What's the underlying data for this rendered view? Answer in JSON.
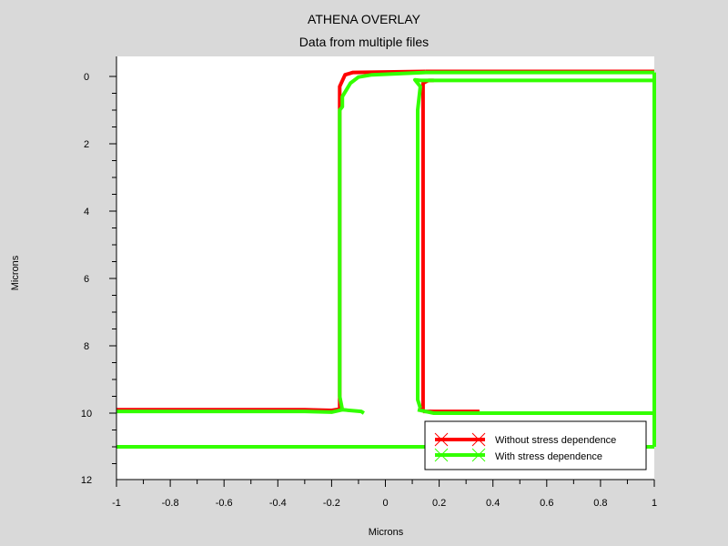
{
  "chart_data": {
    "type": "line",
    "title": "ATHENA OVERLAY",
    "subtitle": "Data from multiple files",
    "xlabel": "Microns",
    "ylabel": "Microns",
    "xlim": [
      -1,
      1
    ],
    "ylim": [
      12,
      -0.5
    ],
    "y_inverted": true,
    "x_ticks": [
      "-1",
      "-0.8",
      "-0.6",
      "-0.4",
      "-0.2",
      "0",
      "0.2",
      "0.4",
      "0.6",
      "0.8",
      "1"
    ],
    "y_ticks": [
      "0",
      "2",
      "4",
      "6",
      "8",
      "10",
      "12"
    ],
    "grid": false,
    "legend_position": "bottom-right",
    "series": [
      {
        "name": "Without stress dependence",
        "color": "#ff0000",
        "paths": [
          [
            [
              -1,
              9.9
            ],
            [
              -0.3,
              9.9
            ],
            [
              -0.2,
              9.92
            ],
            [
              -0.17,
              9.88
            ],
            [
              -0.17,
              0.3
            ],
            [
              -0.15,
              -0.05
            ],
            [
              -0.12,
              -0.12
            ],
            [
              0.15,
              -0.15
            ]
          ],
          [
            [
              0.13,
              9.9
            ],
            [
              0.14,
              9.88
            ],
            [
              0.14,
              0.2
            ],
            [
              0.16,
              0.12
            ],
            [
              0.18,
              0.12
            ]
          ],
          [
            [
              0.14,
              9.95
            ],
            [
              0.35,
              9.95
            ]
          ],
          [
            [
              0.15,
              -0.15
            ],
            [
              1,
              -0.15
            ]
          ],
          [
            [
              0.9,
              11
            ],
            [
              1,
              11
            ]
          ]
        ]
      },
      {
        "name": "With stress dependence",
        "color": "#33ff00",
        "paths": [
          [
            [
              -1,
              9.95
            ],
            [
              -0.3,
              9.95
            ],
            [
              -0.2,
              9.97
            ],
            [
              -0.16,
              9.9
            ],
            [
              -0.09,
              9.95
            ],
            [
              -0.08,
              10.0
            ]
          ],
          [
            [
              -0.16,
              9.9
            ],
            [
              -0.17,
              9.5
            ],
            [
              -0.17,
              1
            ],
            [
              -0.16,
              0.9
            ],
            [
              -0.16,
              0.6
            ],
            [
              -0.13,
              0.2
            ],
            [
              -0.1,
              0.02
            ],
            [
              -0.05,
              -0.05
            ],
            [
              0.15,
              -0.12
            ],
            [
              1,
              -0.12
            ]
          ],
          [
            [
              0.13,
              9.85
            ],
            [
              0.12,
              9.6
            ],
            [
              0.12,
              1
            ],
            [
              0.13,
              0.3
            ],
            [
              0.11,
              0.1
            ],
            [
              0.13,
              0.12
            ],
            [
              1,
              0.12
            ]
          ],
          [
            [
              0.12,
              9.9
            ],
            [
              0.18,
              10.0
            ],
            [
              1,
              10.0
            ]
          ],
          [
            [
              -1,
              11
            ],
            [
              1,
              11
            ]
          ],
          [
            [
              1,
              -0.12
            ],
            [
              1,
              11
            ]
          ]
        ]
      }
    ]
  }
}
